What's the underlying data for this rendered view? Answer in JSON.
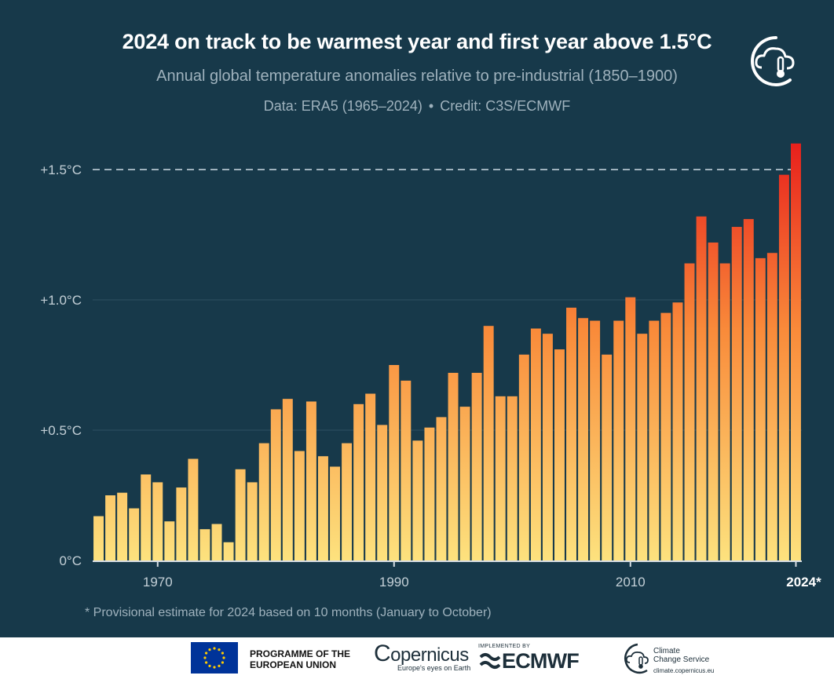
{
  "header": {
    "title": "2024 on track to be warmest year and first year above 1.5°C",
    "subtitle": "Annual global temperature anomalies relative to pre-industrial (1850–1900)",
    "data_label": "Data: ERA5 (1965–2024)",
    "credit_label": "Credit: C3S/ECMWF",
    "separator": "•"
  },
  "footnote": "* Provisional estimate for 2024 based on 10 months (January to October)",
  "footer": {
    "eu_line1": "PROGRAMME OF THE",
    "eu_line2": "EUROPEAN UNION",
    "copernicus_name": "opernicus",
    "copernicus_tagline": "Europe's eyes on Earth",
    "ecmwf_implemented": "IMPLEMENTED BY",
    "ecmwf_brand": "ECMWF",
    "ccs_line1": "Climate",
    "ccs_line2": "Change Service",
    "ccs_url": "climate.copernicus.eu"
  },
  "colors": {
    "background": "#17394a",
    "bar_low": "#fde27e",
    "bar_mid": "#f98b3a",
    "bar_high": "#e8201c",
    "threshold_line": "#9fb2bd",
    "axis_text": "#c4d0d7"
  },
  "chart_data": {
    "type": "bar",
    "title": "2024 on track to be warmest year and first year above 1.5°C",
    "xlabel": "",
    "ylabel": "",
    "ylim": [
      0,
      1.6
    ],
    "x": [
      1965,
      1966,
      1967,
      1968,
      1969,
      1970,
      1971,
      1972,
      1973,
      1974,
      1975,
      1976,
      1977,
      1978,
      1979,
      1980,
      1981,
      1982,
      1983,
      1984,
      1985,
      1986,
      1987,
      1988,
      1989,
      1990,
      1991,
      1992,
      1993,
      1994,
      1995,
      1996,
      1997,
      1998,
      1999,
      2000,
      2001,
      2002,
      2003,
      2004,
      2005,
      2006,
      2007,
      2008,
      2009,
      2010,
      2011,
      2012,
      2013,
      2014,
      2015,
      2016,
      2017,
      2018,
      2019,
      2020,
      2021,
      2022,
      2023,
      2024
    ],
    "values": [
      0.17,
      0.25,
      0.26,
      0.2,
      0.33,
      0.3,
      0.15,
      0.28,
      0.39,
      0.12,
      0.14,
      0.07,
      0.35,
      0.3,
      0.45,
      0.58,
      0.62,
      0.42,
      0.61,
      0.4,
      0.36,
      0.45,
      0.6,
      0.64,
      0.52,
      0.75,
      0.69,
      0.46,
      0.51,
      0.55,
      0.72,
      0.59,
      0.72,
      0.9,
      0.63,
      0.63,
      0.79,
      0.89,
      0.87,
      0.81,
      0.97,
      0.93,
      0.92,
      0.79,
      0.92,
      1.01,
      0.87,
      0.92,
      0.95,
      0.99,
      1.14,
      1.32,
      1.22,
      1.14,
      1.28,
      1.31,
      1.16,
      1.18,
      1.48,
      1.6
    ],
    "y_ticks": [
      {
        "value": 0,
        "label": "0°C"
      },
      {
        "value": 0.5,
        "label": "+0.5°C"
      },
      {
        "value": 1.0,
        "label": "+1.0°C"
      },
      {
        "value": 1.5,
        "label": "+1.5°C"
      }
    ],
    "x_ticks": [
      {
        "value": 1970,
        "label": "1970"
      },
      {
        "value": 1990,
        "label": "1990"
      },
      {
        "value": 2010,
        "label": "2010"
      },
      {
        "value": 2024,
        "label": "2024*"
      }
    ],
    "threshold": 1.5,
    "grid": true
  }
}
